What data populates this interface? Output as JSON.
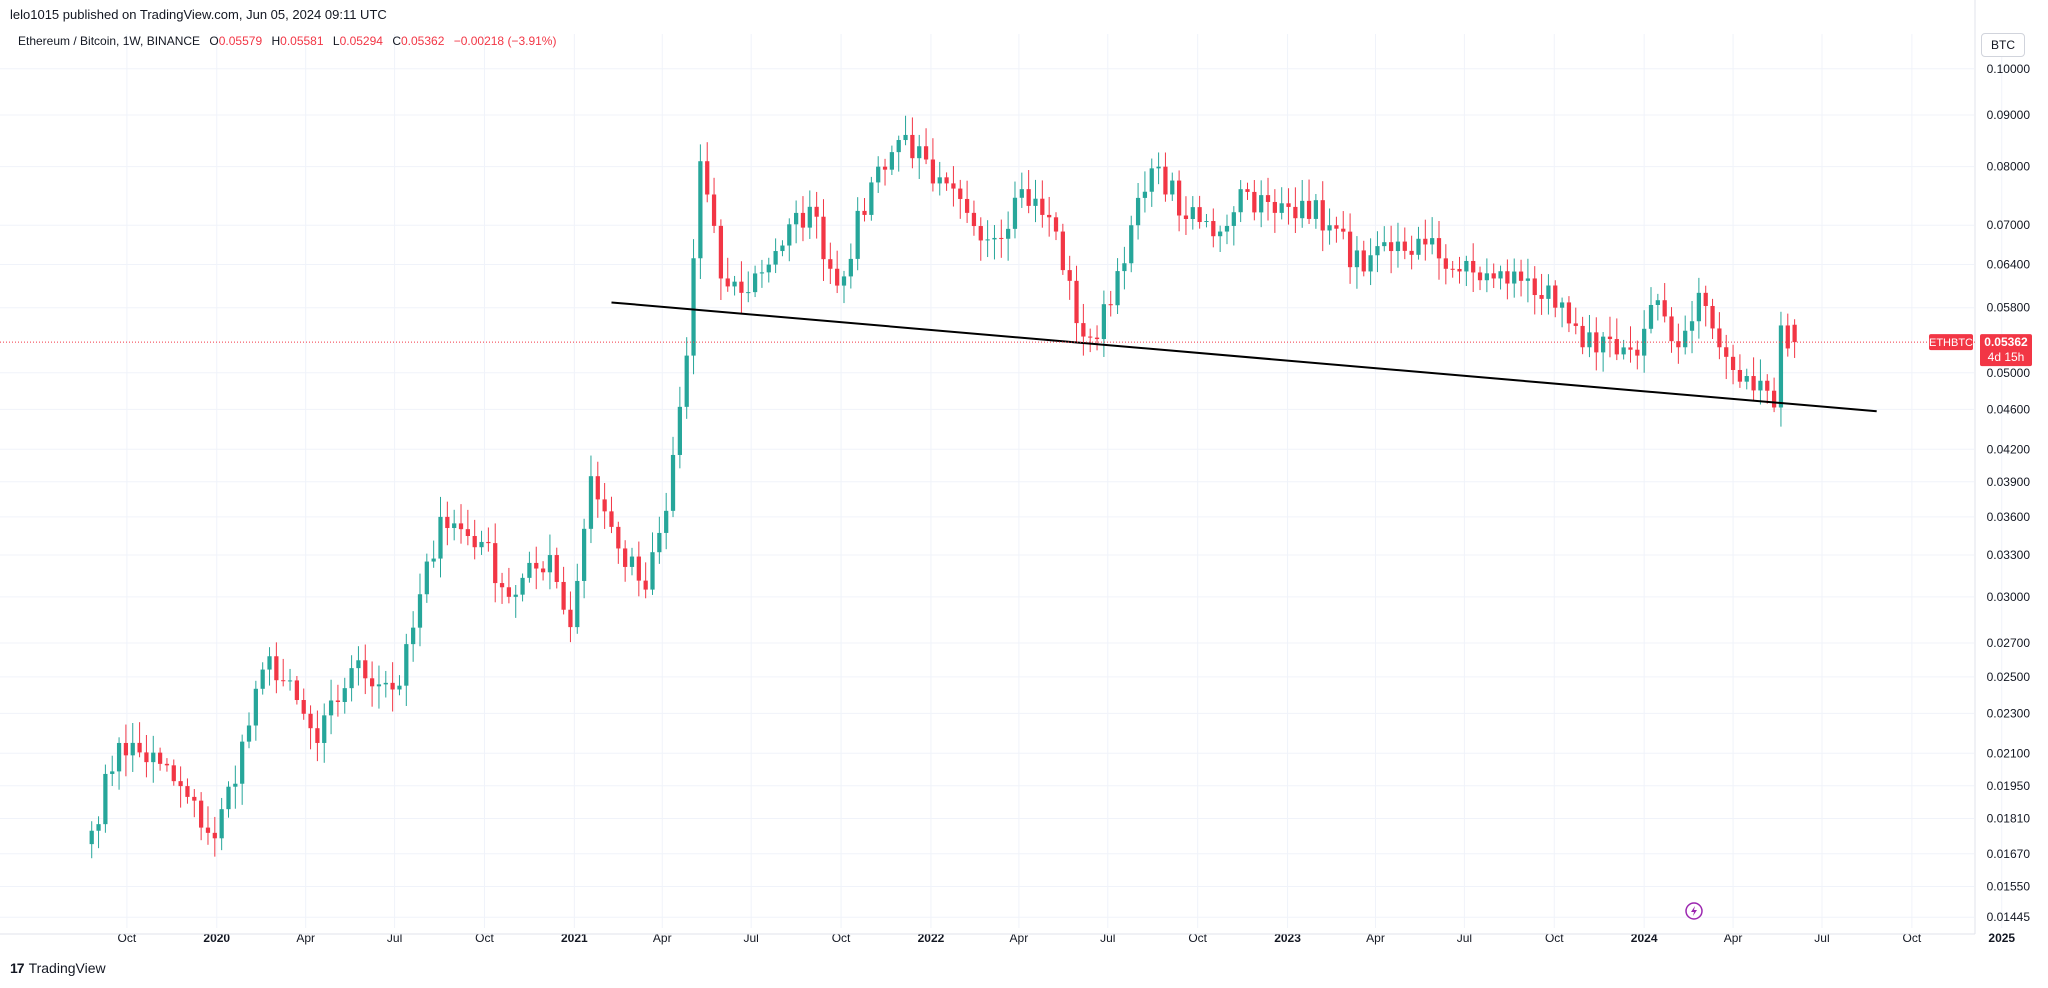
{
  "header": {
    "published": "lelo1015 published on TradingView.com, Jun 05, 2024 09:11 UTC",
    "symbol_desc": "Ethereum / Bitcoin, 1W, BINANCE",
    "open_label": "O",
    "open": "0.05579",
    "high_label": "H",
    "high": "0.05581",
    "low_label": "L",
    "low": "0.05294",
    "close_label": "C",
    "close": "0.05362",
    "change": "−0.00218 (−3.91%)",
    "currency": "BTC"
  },
  "price_tag": {
    "symbol": "ETHBTC",
    "price": "0.05362",
    "countdown": "4d 15h"
  },
  "footer": {
    "brand": "TradingView"
  },
  "colors": {
    "up": "#26a69a",
    "down": "#f23645",
    "trendline": "#000000",
    "grid": "#f0f3fa",
    "lightning": "#9c27b0"
  },
  "chart_data": {
    "type": "candlestick",
    "timeframe": "1W",
    "y_scale": "log",
    "ylim": [
      0.0141,
      0.1063
    ],
    "y_ticks": [
      "0.10000",
      "0.09000",
      "0.08000",
      "0.07000",
      "0.06400",
      "0.05800",
      "0.05000",
      "0.04600",
      "0.04200",
      "0.03900",
      "0.03600",
      "0.03300",
      "0.03000",
      "0.02700",
      "0.02500",
      "0.02300",
      "0.02100",
      "0.01950",
      "0.01810",
      "0.01670",
      "0.01550",
      "0.01445"
    ],
    "x_ticks": [
      "Oct",
      "2020",
      "Apr",
      "Jul",
      "Oct",
      "2021",
      "Apr",
      "Jul",
      "Oct",
      "2022",
      "Apr",
      "Jul",
      "Oct",
      "2023",
      "Apr",
      "Jul",
      "Oct",
      "2024",
      "Apr",
      "Jul",
      "Oct",
      "2025"
    ],
    "last_price": 0.05362,
    "trendline": {
      "from": {
        "date": "2021-02-08",
        "price": 0.0587
      },
      "to": {
        "date": "2024-08-26",
        "price": 0.0458
      }
    },
    "anchors": [
      [
        "2019-08-26",
        0.0176
      ],
      [
        "2019-09-23",
        0.0215
      ],
      [
        "2019-11-04",
        0.0205
      ],
      [
        "2019-12-30",
        0.0173
      ],
      [
        "2020-02-24",
        0.0262
      ],
      [
        "2020-04-13",
        0.0215
      ],
      [
        "2020-05-18",
        0.0255
      ],
      [
        "2020-07-06",
        0.0245
      ],
      [
        "2020-08-17",
        0.036
      ],
      [
        "2020-09-28",
        0.034
      ],
      [
        "2020-10-26",
        0.03
      ],
      [
        "2020-12-07",
        0.033
      ],
      [
        "2020-12-28",
        0.028
      ],
      [
        "2021-01-18",
        0.0395
      ],
      [
        "2021-02-15",
        0.0335
      ],
      [
        "2021-03-15",
        0.0305
      ],
      [
        "2021-04-05",
        0.0365
      ],
      [
        "2021-04-26",
        0.052
      ],
      [
        "2021-05-10",
        0.081
      ],
      [
        "2021-05-31",
        0.062
      ],
      [
        "2021-06-21",
        0.06
      ],
      [
        "2021-07-26",
        0.066
      ],
      [
        "2021-08-30",
        0.073
      ],
      [
        "2021-09-27",
        0.061
      ],
      [
        "2021-11-08",
        0.08
      ],
      [
        "2021-12-06",
        0.086
      ],
      [
        "2022-01-03",
        0.077
      ],
      [
        "2022-02-07",
        0.072
      ],
      [
        "2022-03-07",
        0.068
      ],
      [
        "2022-04-04",
        0.076
      ],
      [
        "2022-05-09",
        0.069
      ],
      [
        "2022-05-30",
        0.056
      ],
      [
        "2022-06-20",
        0.054
      ],
      [
        "2022-07-25",
        0.07
      ],
      [
        "2022-08-22",
        0.08
      ],
      [
        "2022-09-19",
        0.071
      ],
      [
        "2022-10-24",
        0.069
      ],
      [
        "2022-11-14",
        0.076
      ],
      [
        "2022-12-19",
        0.072
      ],
      [
        "2023-01-16",
        0.074
      ],
      [
        "2023-02-13",
        0.07
      ],
      [
        "2023-03-20",
        0.063
      ],
      [
        "2023-04-17",
        0.066
      ],
      [
        "2023-05-22",
        0.067
      ],
      [
        "2023-06-26",
        0.063
      ],
      [
        "2023-07-31",
        0.062
      ],
      [
        "2023-09-04",
        0.062
      ],
      [
        "2023-10-02",
        0.058
      ],
      [
        "2023-10-30",
        0.053
      ],
      [
        "2023-11-27",
        0.054
      ],
      [
        "2023-12-25",
        0.052
      ],
      [
        "2024-01-15",
        0.059
      ],
      [
        "2024-02-05",
        0.053
      ],
      [
        "2024-02-26",
        0.06
      ],
      [
        "2024-03-18",
        0.053
      ],
      [
        "2024-04-08",
        0.049
      ],
      [
        "2024-05-06",
        0.048
      ],
      [
        "2024-05-13",
        0.0462
      ],
      [
        "2024-05-20",
        0.0557
      ],
      [
        "2024-06-03",
        0.0536
      ]
    ]
  }
}
